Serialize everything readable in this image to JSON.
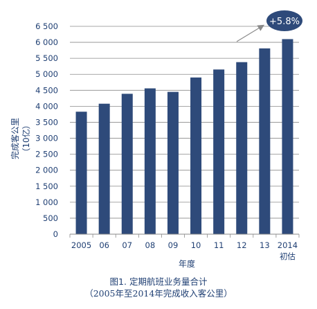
{
  "chart_data": {
    "type": "bar",
    "categories": [
      "2005",
      "06",
      "07",
      "08",
      "09",
      "10",
      "11",
      "12",
      "13",
      "2014"
    ],
    "category_sublabels": {
      "2014": "初估"
    },
    "values": [
      3830,
      4080,
      4390,
      4560,
      4450,
      4900,
      5150,
      5380,
      5810,
      6100
    ],
    "ylim": [
      0,
      6500
    ],
    "yticks": [
      0,
      500,
      1000,
      1500,
      2000,
      2500,
      3000,
      3500,
      4000,
      4500,
      5000,
      5500,
      6000,
      6500
    ],
    "ytick_labels": [
      "0",
      "500",
      "1 000",
      "1 500",
      "2 000",
      "2 500",
      "3 000",
      "3 500",
      "4 000",
      "4 500",
      "5 000",
      "5 500",
      "6 000",
      "6 500"
    ],
    "ylabel": "完成客公里",
    "ylabel_unit": "（10亿）",
    "xlabel": "年度",
    "grid": "horizontal",
    "annotation": "+5.8%",
    "colors": {
      "bar": "#2e4a7a",
      "grid": "#8a8a8a",
      "text": "#1f3f73",
      "badge": "#2e4a7a",
      "badge_text": "#ffffff"
    }
  },
  "caption": {
    "title": "图1. 定期航班业务量合计",
    "subtitle": "（2005年至2014年完成收入客公里）"
  }
}
